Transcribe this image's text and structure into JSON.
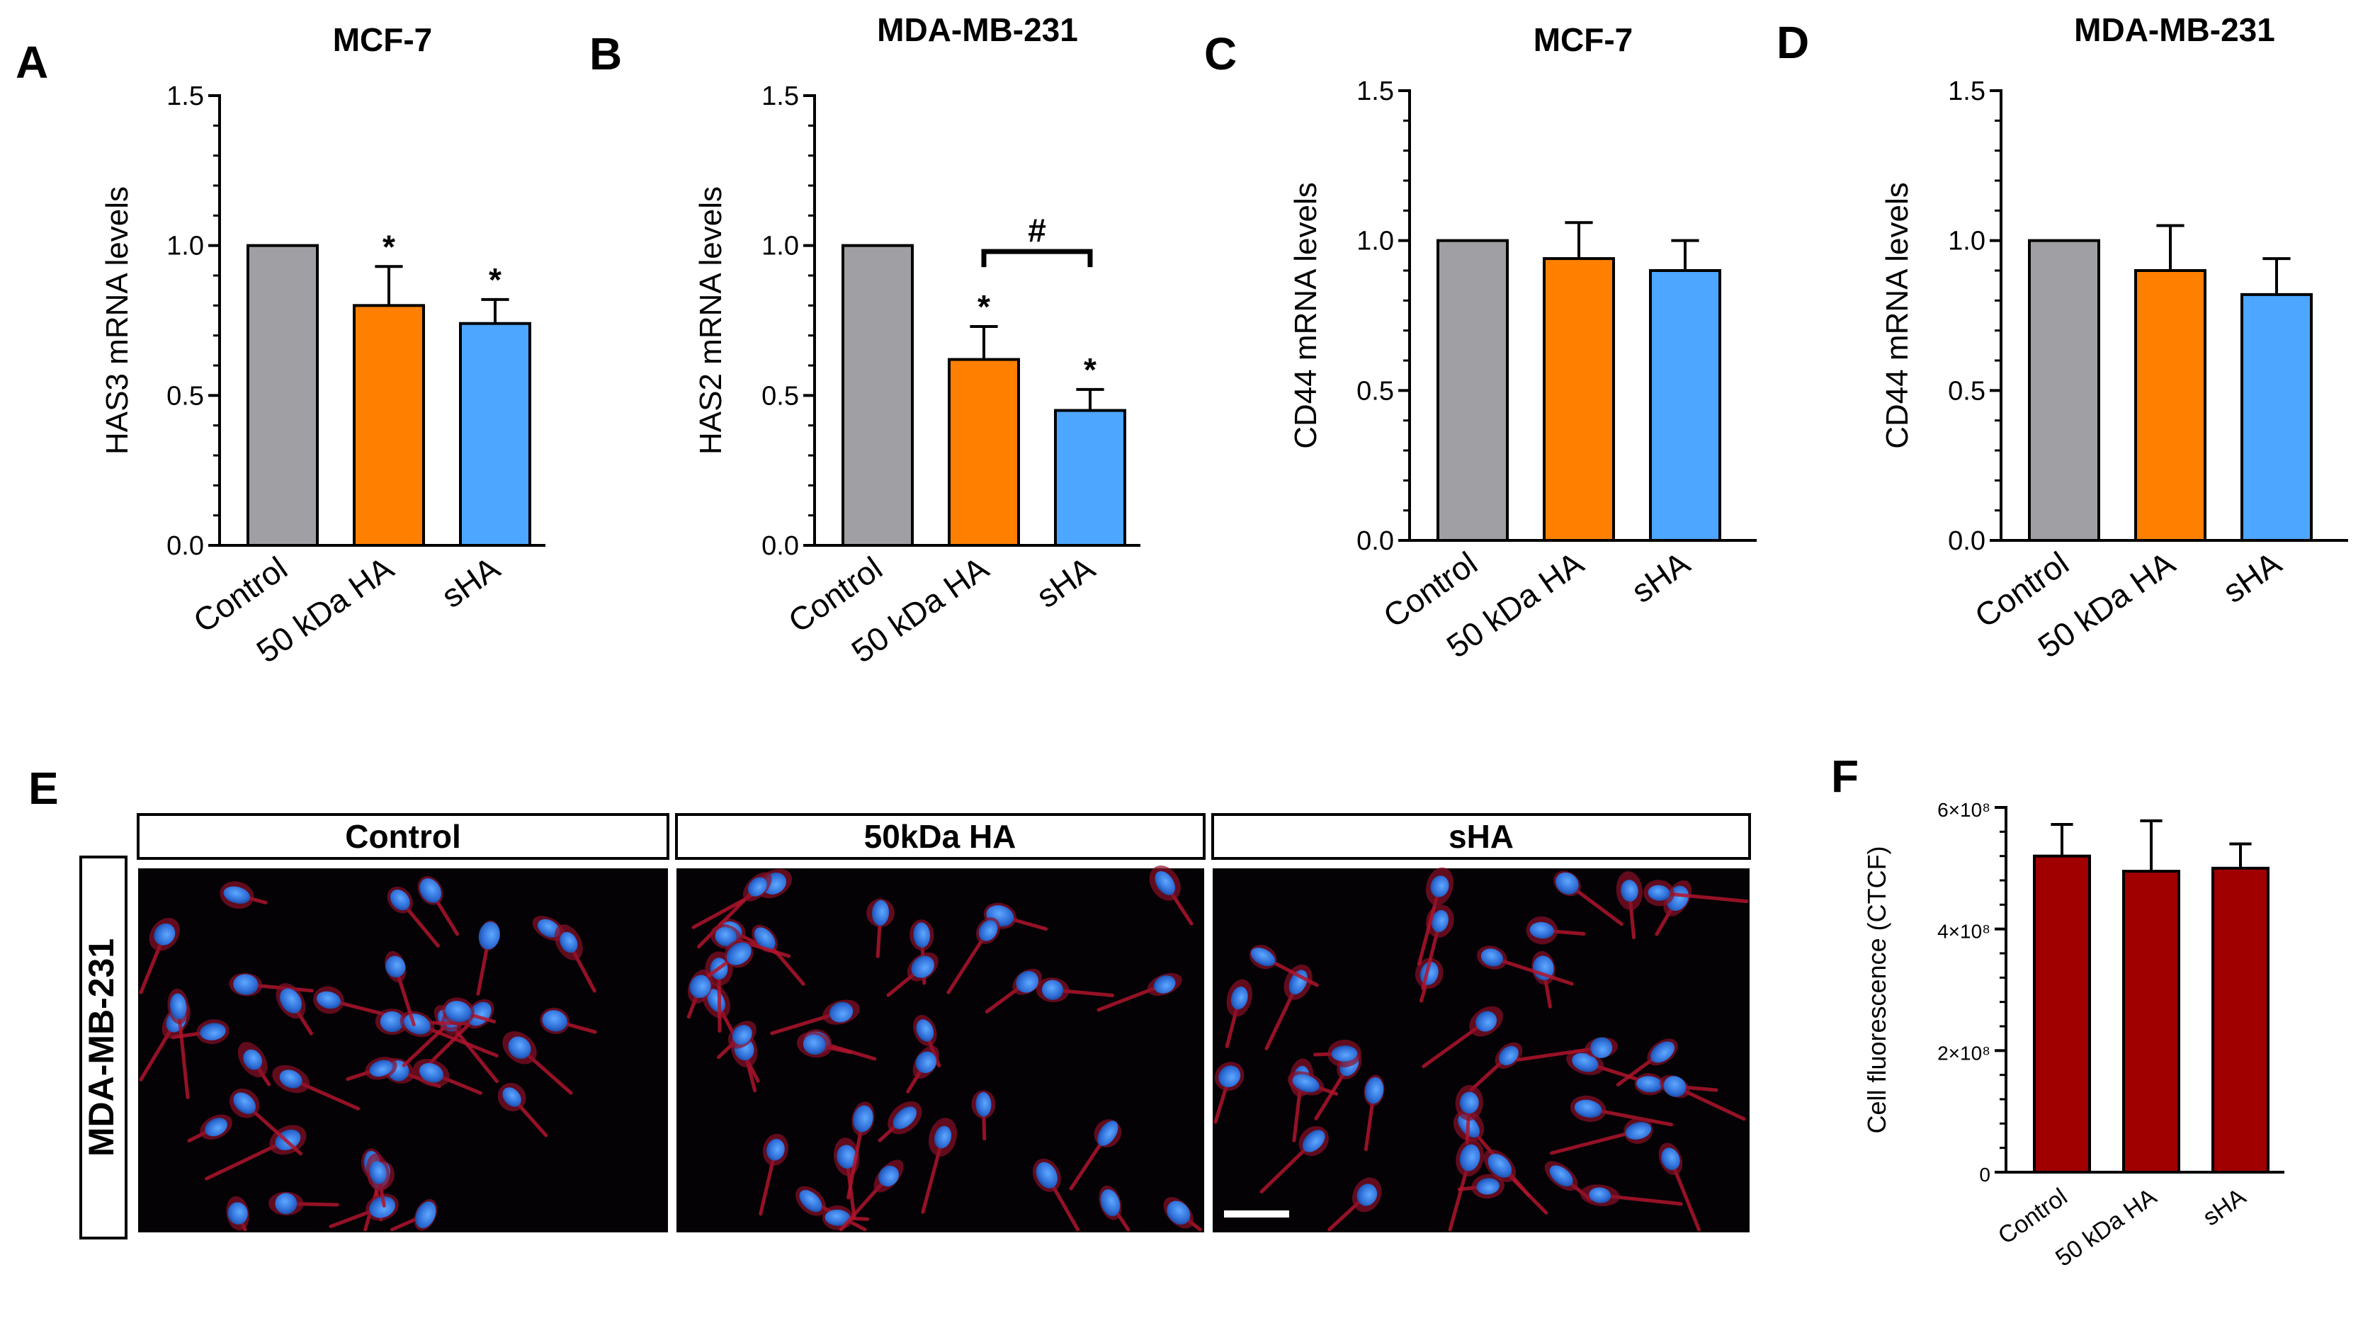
{
  "chart_data": [
    {
      "panel": "A",
      "type": "bar",
      "title": "MCF-7",
      "ylabel": "HAS3 mRNA levels",
      "categories": [
        "Control",
        "50 kDa HA",
        "sHA"
      ],
      "values": [
        1.0,
        0.8,
        0.74
      ],
      "errors": [
        0,
        0.13,
        0.08
      ],
      "colors": [
        "#a0a0a4",
        "#ff8000",
        "#4da6ff"
      ],
      "ylim": [
        0,
        1.5
      ],
      "yticks": [
        "0.0",
        "0.5",
        "1.0",
        "1.5"
      ],
      "annotations": [
        "",
        "*",
        "*"
      ],
      "bracket": null
    },
    {
      "panel": "B",
      "type": "bar",
      "title": "MDA-MB-231",
      "ylabel": "HAS2 mRNA levels",
      "categories": [
        "Control",
        "50 kDa HA",
        "sHA"
      ],
      "values": [
        1.0,
        0.62,
        0.45
      ],
      "errors": [
        0,
        0.11,
        0.07
      ],
      "colors": [
        "#a0a0a4",
        "#ff8000",
        "#4da6ff"
      ],
      "ylim": [
        0,
        1.5
      ],
      "yticks": [
        "0.0",
        "0.5",
        "1.0",
        "1.5"
      ],
      "annotations": [
        "",
        "*",
        "*"
      ],
      "bracket": {
        "from": 1,
        "to": 2,
        "label": "#"
      }
    },
    {
      "panel": "C",
      "type": "bar",
      "title": "MCF-7",
      "ylabel": "CD44 mRNA levels",
      "categories": [
        "Control",
        "50 kDa HA",
        "sHA"
      ],
      "values": [
        1.0,
        0.94,
        0.9
      ],
      "errors": [
        0,
        0.12,
        0.1
      ],
      "colors": [
        "#a0a0a4",
        "#ff8000",
        "#4da6ff"
      ],
      "ylim": [
        0,
        1.5
      ],
      "yticks": [
        "0.0",
        "0.5",
        "1.0",
        "1.5"
      ],
      "annotations": [
        "",
        "",
        ""
      ],
      "bracket": null
    },
    {
      "panel": "D",
      "type": "bar",
      "title": "MDA-MB-231",
      "ylabel": "CD44 mRNA levels",
      "categories": [
        "Control",
        "50 kDa HA",
        "sHA"
      ],
      "values": [
        1.0,
        0.9,
        0.82
      ],
      "errors": [
        0,
        0.15,
        0.12
      ],
      "colors": [
        "#a0a0a4",
        "#ff8000",
        "#4da6ff"
      ],
      "ylim": [
        0,
        1.5
      ],
      "yticks": [
        "0.0",
        "0.5",
        "1.0",
        "1.5"
      ],
      "annotations": [
        "",
        "",
        ""
      ],
      "bracket": null
    },
    {
      "panel": "F",
      "type": "bar",
      "title": "",
      "ylabel": "Cell fluorescence (CTCF)",
      "categories": [
        "Control",
        "50 kDa HA",
        "sHA"
      ],
      "values": [
        520000000,
        495000000,
        500000000
      ],
      "errors": [
        52000000,
        83000000,
        40000000
      ],
      "colors": [
        "#a00000",
        "#a00000",
        "#a00000"
      ],
      "ylim": [
        0,
        600000000
      ],
      "yticks": [
        "0",
        "2×10⁸",
        "4×10⁸",
        "6×10⁸"
      ],
      "annotations": [
        "",
        "",
        ""
      ],
      "bracket": null
    }
  ],
  "panel_E": {
    "letter": "E",
    "row_label": "MDA-MB-231",
    "columns": [
      "Control",
      "50kDa HA",
      "sHA"
    ]
  },
  "panel_F_letter": "F"
}
